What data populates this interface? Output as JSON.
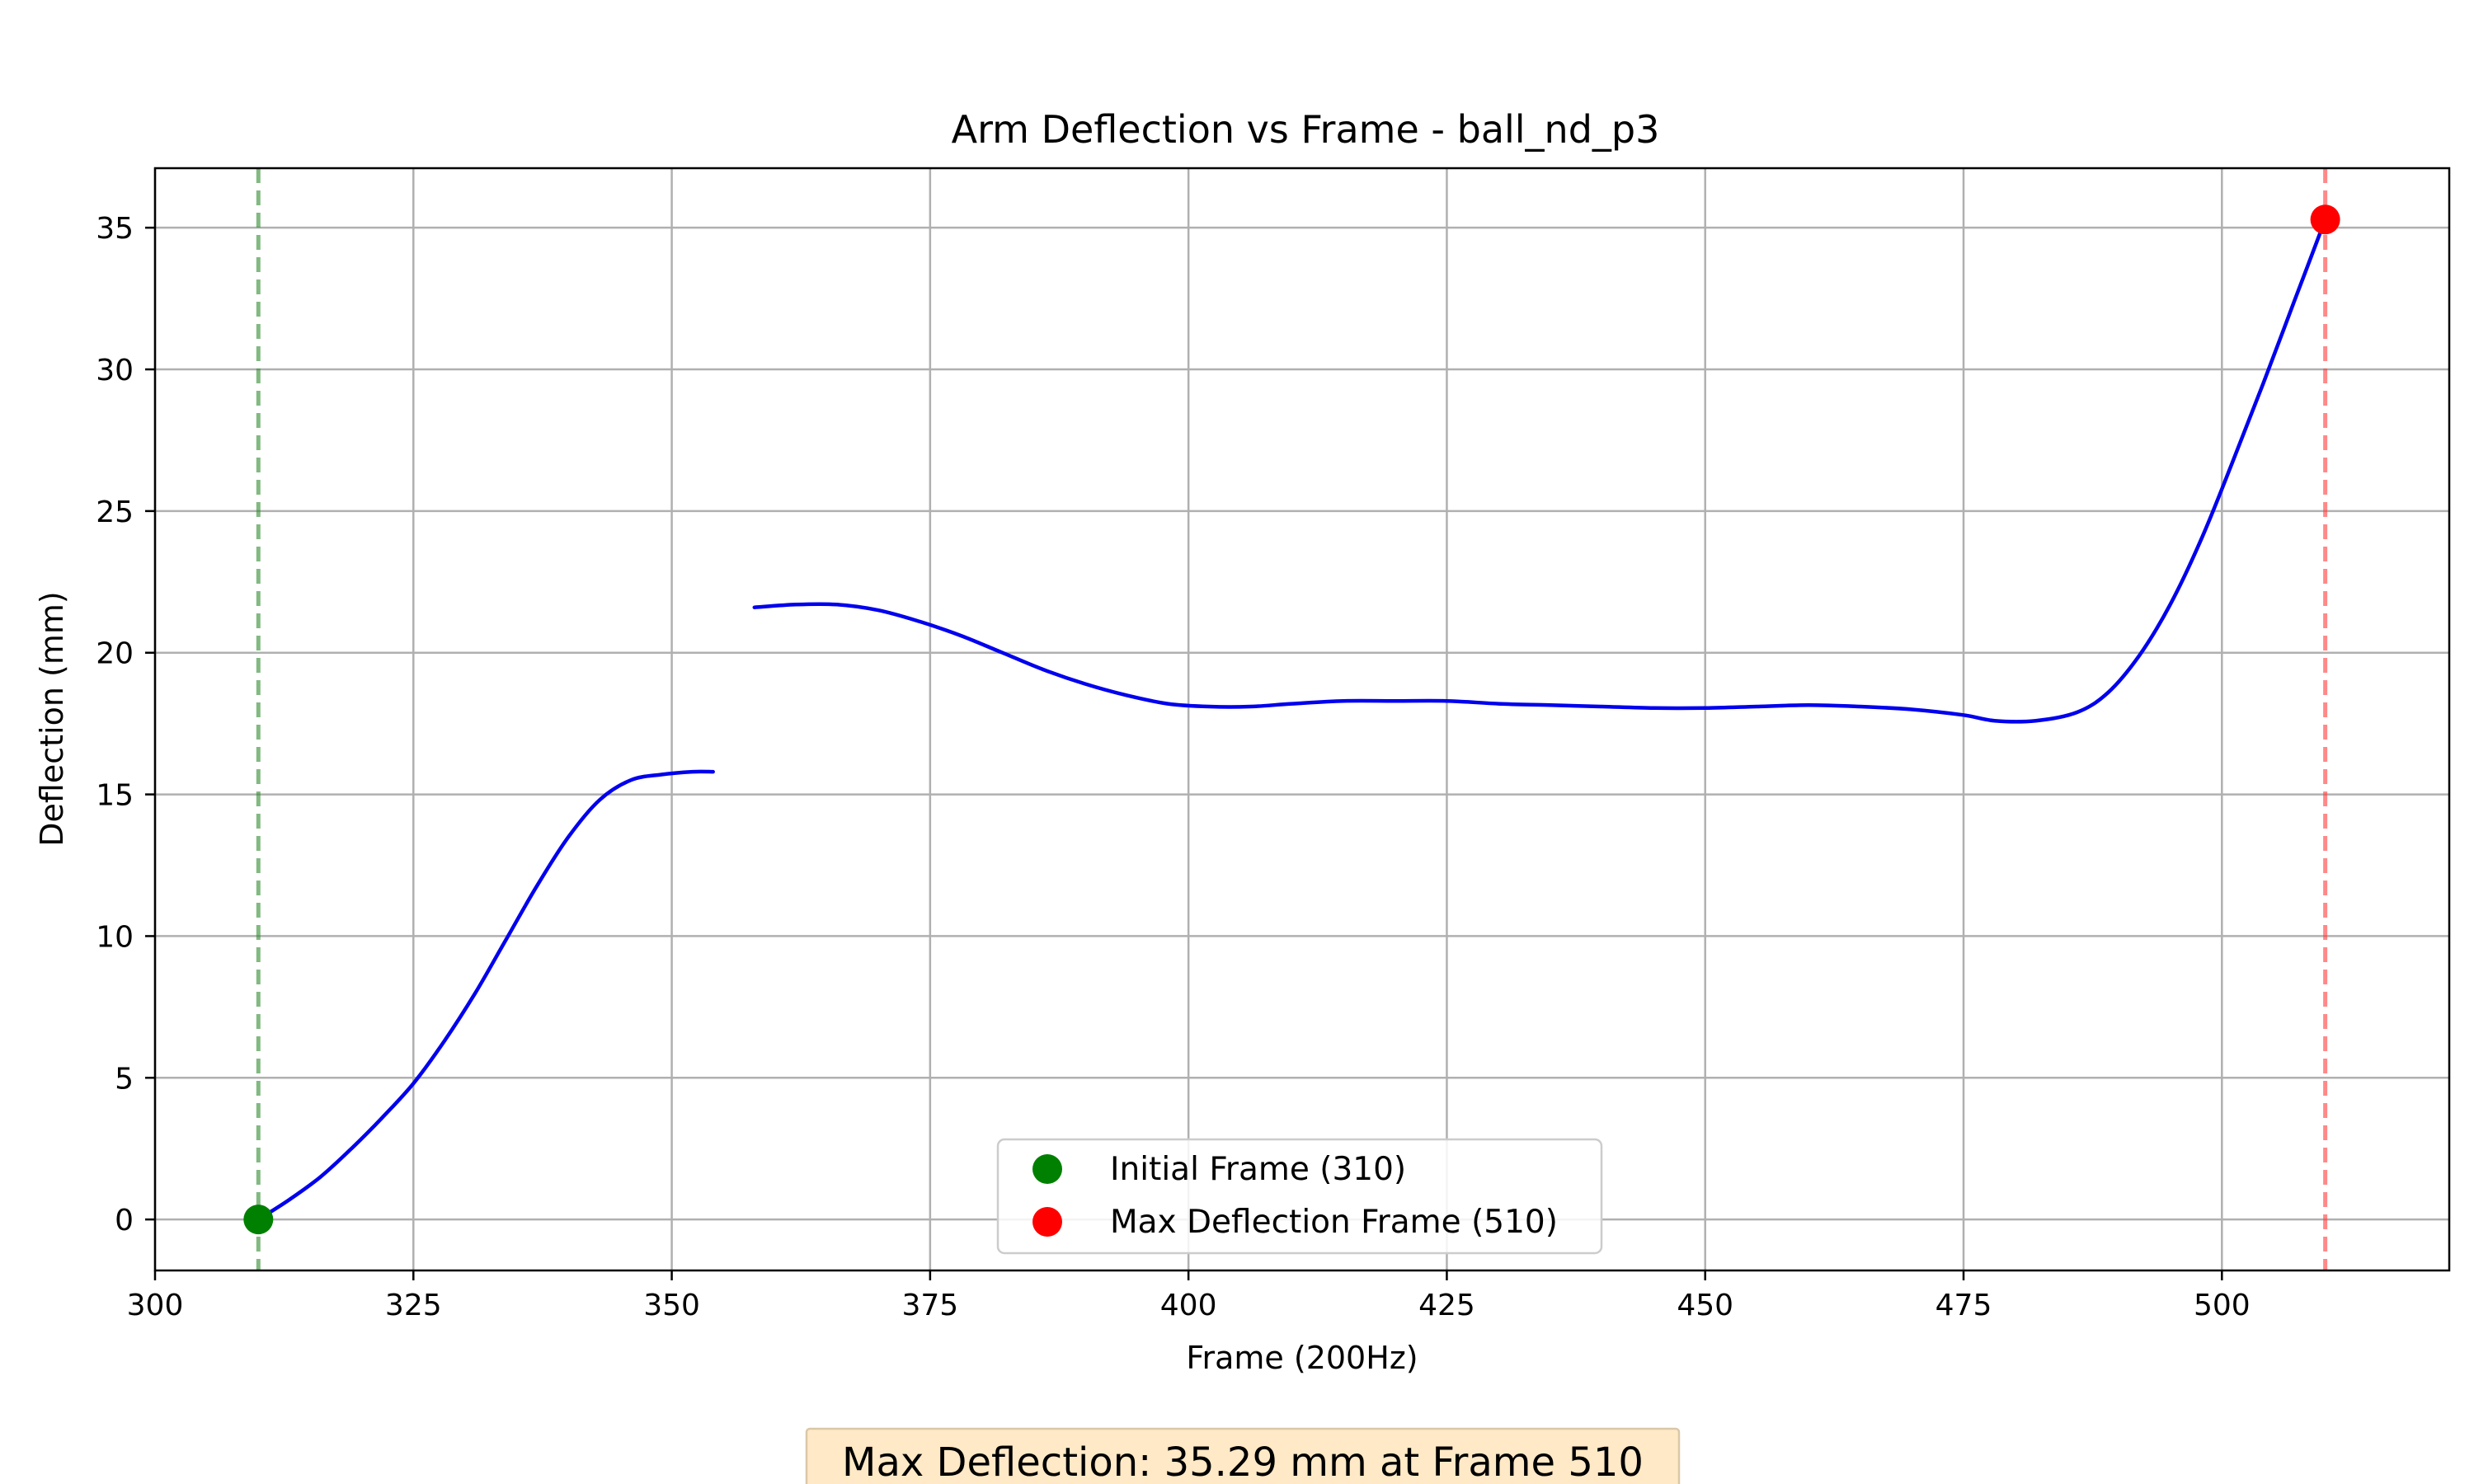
{
  "chart_data": {
    "type": "line",
    "title": "Arm Deflection vs Frame - ball_nd_p3",
    "xlabel": "Frame (200Hz)",
    "ylabel": "Deflection (mm)",
    "xlim": [
      300,
      522
    ],
    "ylim": [
      -1.8,
      37.1
    ],
    "xticks": [
      300,
      325,
      350,
      375,
      400,
      425,
      450,
      475,
      500
    ],
    "yticks": [
      0,
      5,
      10,
      15,
      20,
      25,
      30,
      35
    ],
    "grid": true,
    "series": [
      {
        "color": "#0000ee",
        "segments": [
          {
            "x": [
              310,
              313,
              316,
              319,
              322,
              325,
              328,
              331,
              334,
              337,
              340,
              343,
              346,
              349,
              352,
              354
            ],
            "y": [
              0.0,
              0.7,
              1.5,
              2.5,
              3.6,
              4.8,
              6.3,
              8.0,
              9.9,
              11.8,
              13.5,
              14.8,
              15.5,
              15.7,
              15.8,
              15.8
            ]
          },
          {
            "x": [
              358,
              362,
              366,
              370,
              374,
              378,
              382,
              386,
              390,
              394,
              398,
              402,
              406,
              410,
              415,
              420,
              425,
              430,
              435,
              440,
              445,
              450,
              455,
              460,
              465,
              470,
              475,
              478,
              482,
              486,
              489,
              492,
              495,
              498,
              501,
              504,
              507,
              510
            ],
            "y": [
              21.6,
              21.7,
              21.7,
              21.5,
              21.1,
              20.6,
              20.0,
              19.4,
              18.9,
              18.5,
              18.2,
              18.1,
              18.1,
              18.2,
              18.3,
              18.3,
              18.3,
              18.2,
              18.15,
              18.1,
              18.05,
              18.05,
              18.1,
              18.15,
              18.1,
              18.0,
              17.8,
              17.6,
              17.6,
              17.9,
              18.6,
              19.9,
              21.7,
              24.0,
              26.7,
              29.5,
              32.4,
              35.29
            ]
          }
        ]
      }
    ],
    "vlines": [
      {
        "x": 310,
        "color": "#2e8b2e",
        "style": "dashed"
      },
      {
        "x": 510,
        "color": "#ff3b3b",
        "style": "dashed"
      }
    ],
    "markers": [
      {
        "label": "Initial Frame (310)",
        "x": 310,
        "y": 0,
        "color": "#008000"
      },
      {
        "label": "Max Deflection Frame (510)",
        "x": 510,
        "y": 35.29,
        "color": "#ff0000"
      }
    ],
    "legend_position": "lower center",
    "annotation": "Max Deflection: 35.29 mm at Frame 510"
  }
}
